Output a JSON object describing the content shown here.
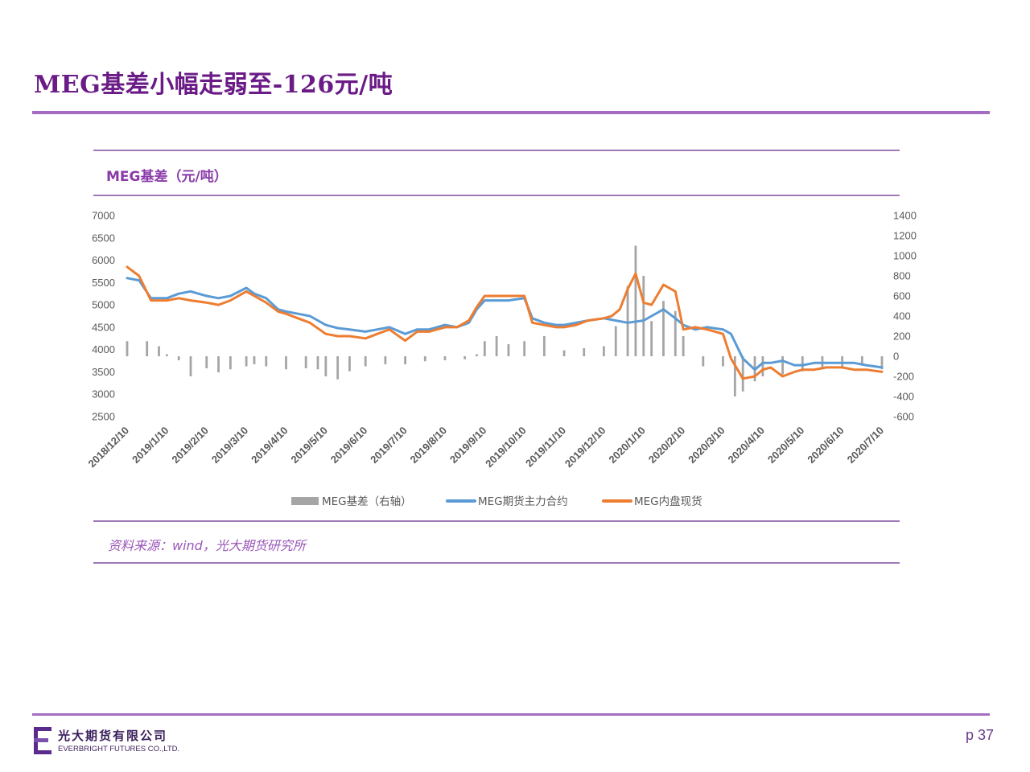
{
  "slide": {
    "title": "MEG基差小幅走弱至-126元/吨",
    "chart_title": "MEG基差（元/吨）",
    "source": "资料来源：wind，光大期货研究所",
    "page": "p 37",
    "company_cn": "光大期货有限公司",
    "company_en": "EVERBRIGHT FUTURES CO.,LTD.",
    "colors": {
      "accent": "#6a1b86",
      "rule": "#a56cc1",
      "futures": "#5b9bd5",
      "spot": "#ed7d31",
      "basis": "#a5a5a5"
    }
  },
  "chart_data": {
    "type": "line",
    "x_labels": [
      "2018/12/10",
      "2019/1/10",
      "2019/2/10",
      "2019/3/10",
      "2019/4/10",
      "2019/5/10",
      "2019/6/10",
      "2019/7/10",
      "2019/8/10",
      "2019/9/10",
      "2019/10/10",
      "2019/11/10",
      "2019/12/10",
      "2020/1/10",
      "2020/2/10",
      "2020/3/10",
      "2020/4/10",
      "2020/5/10",
      "2020/6/10",
      "2020/7/10"
    ],
    "left_axis": {
      "ylim": [
        2500,
        7000
      ],
      "ticks": [
        "7000",
        "6500",
        "6000",
        "5500",
        "5000",
        "4500",
        "4000",
        "3500",
        "3000",
        "2500"
      ]
    },
    "right_axis": {
      "ylim": [
        -600,
        1400
      ],
      "ticks": [
        "1400",
        "1200",
        "1000",
        "800",
        "600",
        "400",
        "200",
        "0",
        "-200",
        "-400",
        "-600"
      ]
    },
    "legend": [
      "MEG基差（右轴）",
      "MEG期货主力合约",
      "MEG内盘现货"
    ],
    "series": [
      {
        "name": "MEG期货主力合约",
        "axis": "left",
        "type": "line",
        "color": "#5b9bd5",
        "x": [
          0,
          0.3,
          0.6,
          1.0,
          1.3,
          1.6,
          2.0,
          2.3,
          2.6,
          3.0,
          3.2,
          3.5,
          3.8,
          4.0,
          4.3,
          4.6,
          5.0,
          5.3,
          5.6,
          6.0,
          6.3,
          6.6,
          7.0,
          7.3,
          7.6,
          8.0,
          8.3,
          8.6,
          8.8,
          9.0,
          9.3,
          9.6,
          10.0,
          10.2,
          10.5,
          10.8,
          11.0,
          11.3,
          11.6,
          12.0,
          12.3,
          12.6,
          13.0,
          13.2,
          13.5,
          13.8,
          14.0,
          14.3,
          14.6,
          15.0,
          15.2,
          15.5,
          15.8,
          16.0,
          16.2,
          16.5,
          16.8,
          17.0,
          17.3,
          17.6,
          18.0,
          18.3,
          18.6,
          19.0
        ],
        "values": [
          5600,
          5550,
          5150,
          5150,
          5250,
          5300,
          5200,
          5150,
          5200,
          5380,
          5250,
          5150,
          4900,
          4850,
          4800,
          4750,
          4550,
          4480,
          4450,
          4400,
          4450,
          4500,
          4350,
          4450,
          4450,
          4550,
          4500,
          4600,
          4900,
          5100,
          5100,
          5100,
          5150,
          4700,
          4600,
          4550,
          4550,
          4600,
          4650,
          4700,
          4650,
          4600,
          4650,
          4750,
          4900,
          4700,
          4550,
          4450,
          4500,
          4450,
          4350,
          3800,
          3550,
          3700,
          3700,
          3750,
          3650,
          3650,
          3700,
          3700,
          3700,
          3700,
          3650,
          3600
        ]
      },
      {
        "name": "MEG内盘现货",
        "axis": "left",
        "type": "line",
        "color": "#ed7d31",
        "x": [
          0,
          0.3,
          0.6,
          1.0,
          1.3,
          1.6,
          2.0,
          2.3,
          2.6,
          3.0,
          3.2,
          3.5,
          3.8,
          4.0,
          4.3,
          4.6,
          5.0,
          5.3,
          5.6,
          6.0,
          6.3,
          6.6,
          7.0,
          7.3,
          7.6,
          8.0,
          8.3,
          8.6,
          8.8,
          9.0,
          9.3,
          9.6,
          10.0,
          10.2,
          10.5,
          10.8,
          11.0,
          11.3,
          11.6,
          12.0,
          12.2,
          12.4,
          12.6,
          12.8,
          13.0,
          13.2,
          13.5,
          13.8,
          14.0,
          14.3,
          14.6,
          15.0,
          15.2,
          15.5,
          15.8,
          16.0,
          16.2,
          16.5,
          16.8,
          17.0,
          17.3,
          17.6,
          18.0,
          18.3,
          18.6,
          19.0
        ],
        "values": [
          5850,
          5650,
          5100,
          5100,
          5150,
          5100,
          5050,
          5000,
          5100,
          5300,
          5200,
          5050,
          4850,
          4800,
          4700,
          4600,
          4350,
          4300,
          4300,
          4250,
          4350,
          4450,
          4200,
          4400,
          4400,
          4500,
          4500,
          4650,
          4950,
          5200,
          5200,
          5200,
          5200,
          4600,
          4550,
          4500,
          4500,
          4550,
          4650,
          4700,
          4750,
          4900,
          5350,
          5700,
          5050,
          5000,
          5450,
          5300,
          4450,
          4500,
          4450,
          4350,
          3800,
          3350,
          3400,
          3550,
          3600,
          3400,
          3500,
          3550,
          3550,
          3600,
          3600,
          3550,
          3550,
          3500
        ]
      },
      {
        "name": "MEG基差（右轴）",
        "axis": "right",
        "type": "bar",
        "color": "#a5a5a5",
        "x": [
          0,
          0.5,
          0.8,
          1.0,
          1.3,
          1.6,
          2.0,
          2.3,
          2.6,
          3.0,
          3.2,
          3.5,
          4.0,
          4.5,
          4.8,
          5.0,
          5.3,
          5.6,
          6.0,
          6.5,
          7.0,
          7.5,
          8.0,
          8.5,
          8.8,
          9.0,
          9.3,
          9.6,
          10.0,
          10.5,
          11.0,
          11.5,
          12.0,
          12.3,
          12.6,
          12.8,
          13.0,
          13.2,
          13.5,
          13.8,
          14.0,
          14.5,
          15.0,
          15.3,
          15.5,
          15.8,
          16.0,
          16.5,
          17.0,
          17.5,
          18.0,
          18.5,
          19.0
        ],
        "values": [
          150,
          150,
          100,
          20,
          -40,
          -200,
          -120,
          -160,
          -130,
          -100,
          -80,
          -100,
          -130,
          -120,
          -130,
          -200,
          -230,
          -150,
          -100,
          -80,
          -80,
          -50,
          -40,
          -30,
          20,
          150,
          200,
          120,
          150,
          200,
          60,
          80,
          100,
          300,
          700,
          1100,
          800,
          350,
          550,
          450,
          200,
          -100,
          -100,
          -400,
          -350,
          -250,
          -200,
          -180,
          -150,
          -130,
          -100,
          -90,
          -130
        ]
      }
    ]
  }
}
